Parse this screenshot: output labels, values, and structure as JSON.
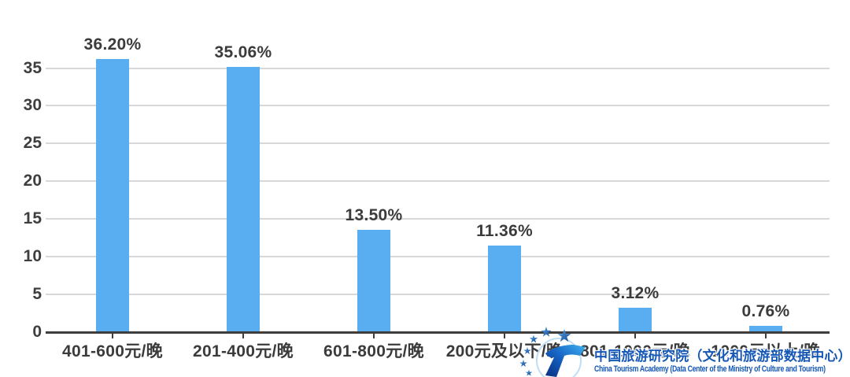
{
  "chart_data": {
    "type": "bar",
    "title": "",
    "xlabel": "",
    "ylabel": "",
    "categories": [
      "401-600元/晚",
      "201-400元/晚",
      "601-800元/晚",
      "200元及以下/晚",
      "801-1000元/晚",
      "1000元以上/晚"
    ],
    "values": [
      36.2,
      35.06,
      13.5,
      11.36,
      3.12,
      0.76
    ],
    "value_labels": [
      "36.20%",
      "35.06%",
      "13.50%",
      "11.36%",
      "3.12%",
      "0.76%"
    ],
    "ylim": [
      0,
      35
    ],
    "yticks": [
      0,
      5,
      10,
      15,
      20,
      25,
      30,
      35
    ],
    "grid": true,
    "legend_position": "none",
    "bar_color": "#58AEF1",
    "label_color": "#3B3B3B",
    "grid_color": "#D8D8D8",
    "axis_color": "#3E3E3E"
  },
  "watermark": {
    "logo_icon": "china-tourism-academy-logo",
    "cn_text": "中国旅游研究院（文化和旅游部数据中心）",
    "en_text": "China Tourism Academy (Data Center of the Ministry of Culture and Tourism)",
    "text_color": "#1557B5"
  }
}
